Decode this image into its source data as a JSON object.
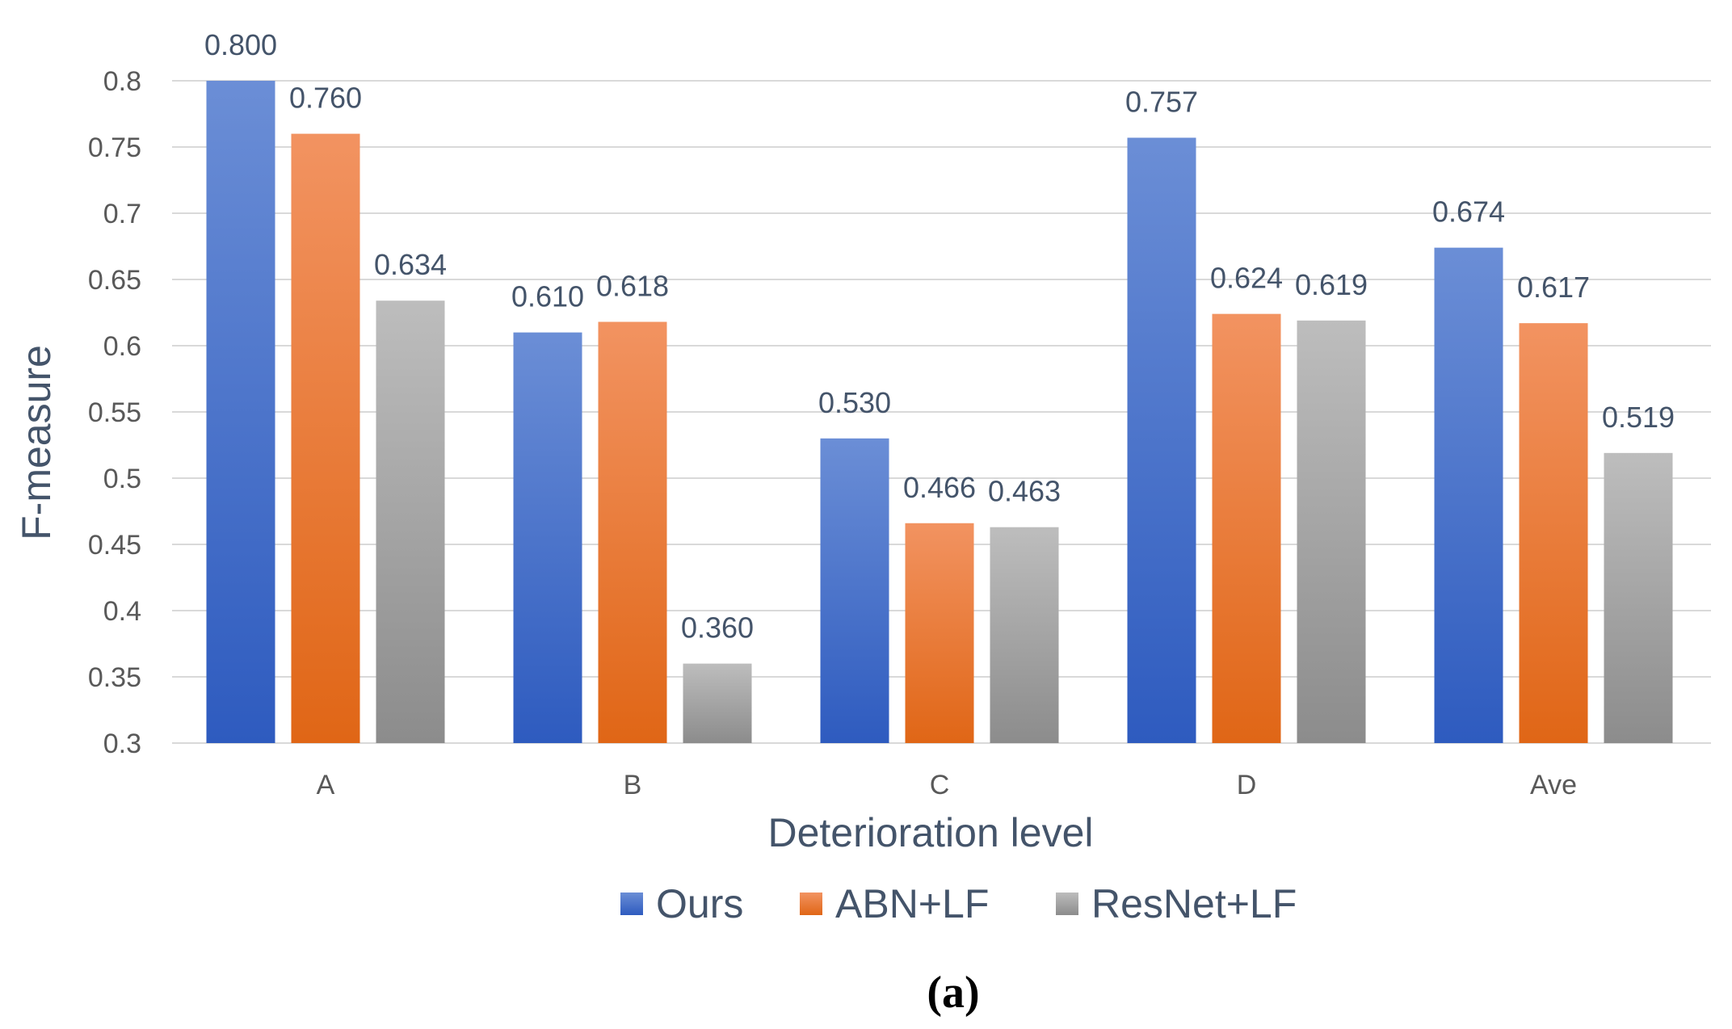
{
  "chart_data": {
    "type": "bar",
    "title": "",
    "xlabel": "Deterioration level",
    "ylabel": "F-measure",
    "ylim": [
      0.3,
      0.8
    ],
    "yticks": [
      0.3,
      0.35,
      0.4,
      0.45,
      0.5,
      0.55,
      0.6,
      0.65,
      0.7,
      0.75,
      0.8
    ],
    "ytick_labels": [
      "0.3",
      "0.35",
      "0.4",
      "0.45",
      "0.5",
      "0.55",
      "0.6",
      "0.65",
      "0.7",
      "0.75",
      "0.8"
    ],
    "grid": true,
    "legend_position": "bottom",
    "categories": [
      "A",
      "B",
      "C",
      "D",
      "Ave"
    ],
    "series": [
      {
        "name": "Ours",
        "values": [
          0.8,
          0.61,
          0.53,
          0.757,
          0.674
        ],
        "labels": [
          "0.800",
          "0.610",
          "0.530",
          "0.757",
          "0.674"
        ],
        "color_top": "#6B8ED6",
        "color_bottom": "#2E5BBF"
      },
      {
        "name": "ABN+LF",
        "values": [
          0.76,
          0.618,
          0.466,
          0.624,
          0.617
        ],
        "labels": [
          "0.760",
          "0.618",
          "0.466",
          "0.624",
          "0.617"
        ],
        "color_top": "#F29361",
        "color_bottom": "#E06616"
      },
      {
        "name": "ResNet+LF",
        "values": [
          0.634,
          0.36,
          0.463,
          0.619,
          0.519
        ],
        "labels": [
          "0.634",
          "0.360",
          "0.463",
          "0.619",
          "0.519"
        ],
        "color_top": "#BDBDBD",
        "color_bottom": "#8C8C8C"
      }
    ]
  },
  "caption": "(a)",
  "colors": {
    "grid": "#D9D9D9",
    "tick_text": "#595959",
    "label_text": "#44546A"
  }
}
